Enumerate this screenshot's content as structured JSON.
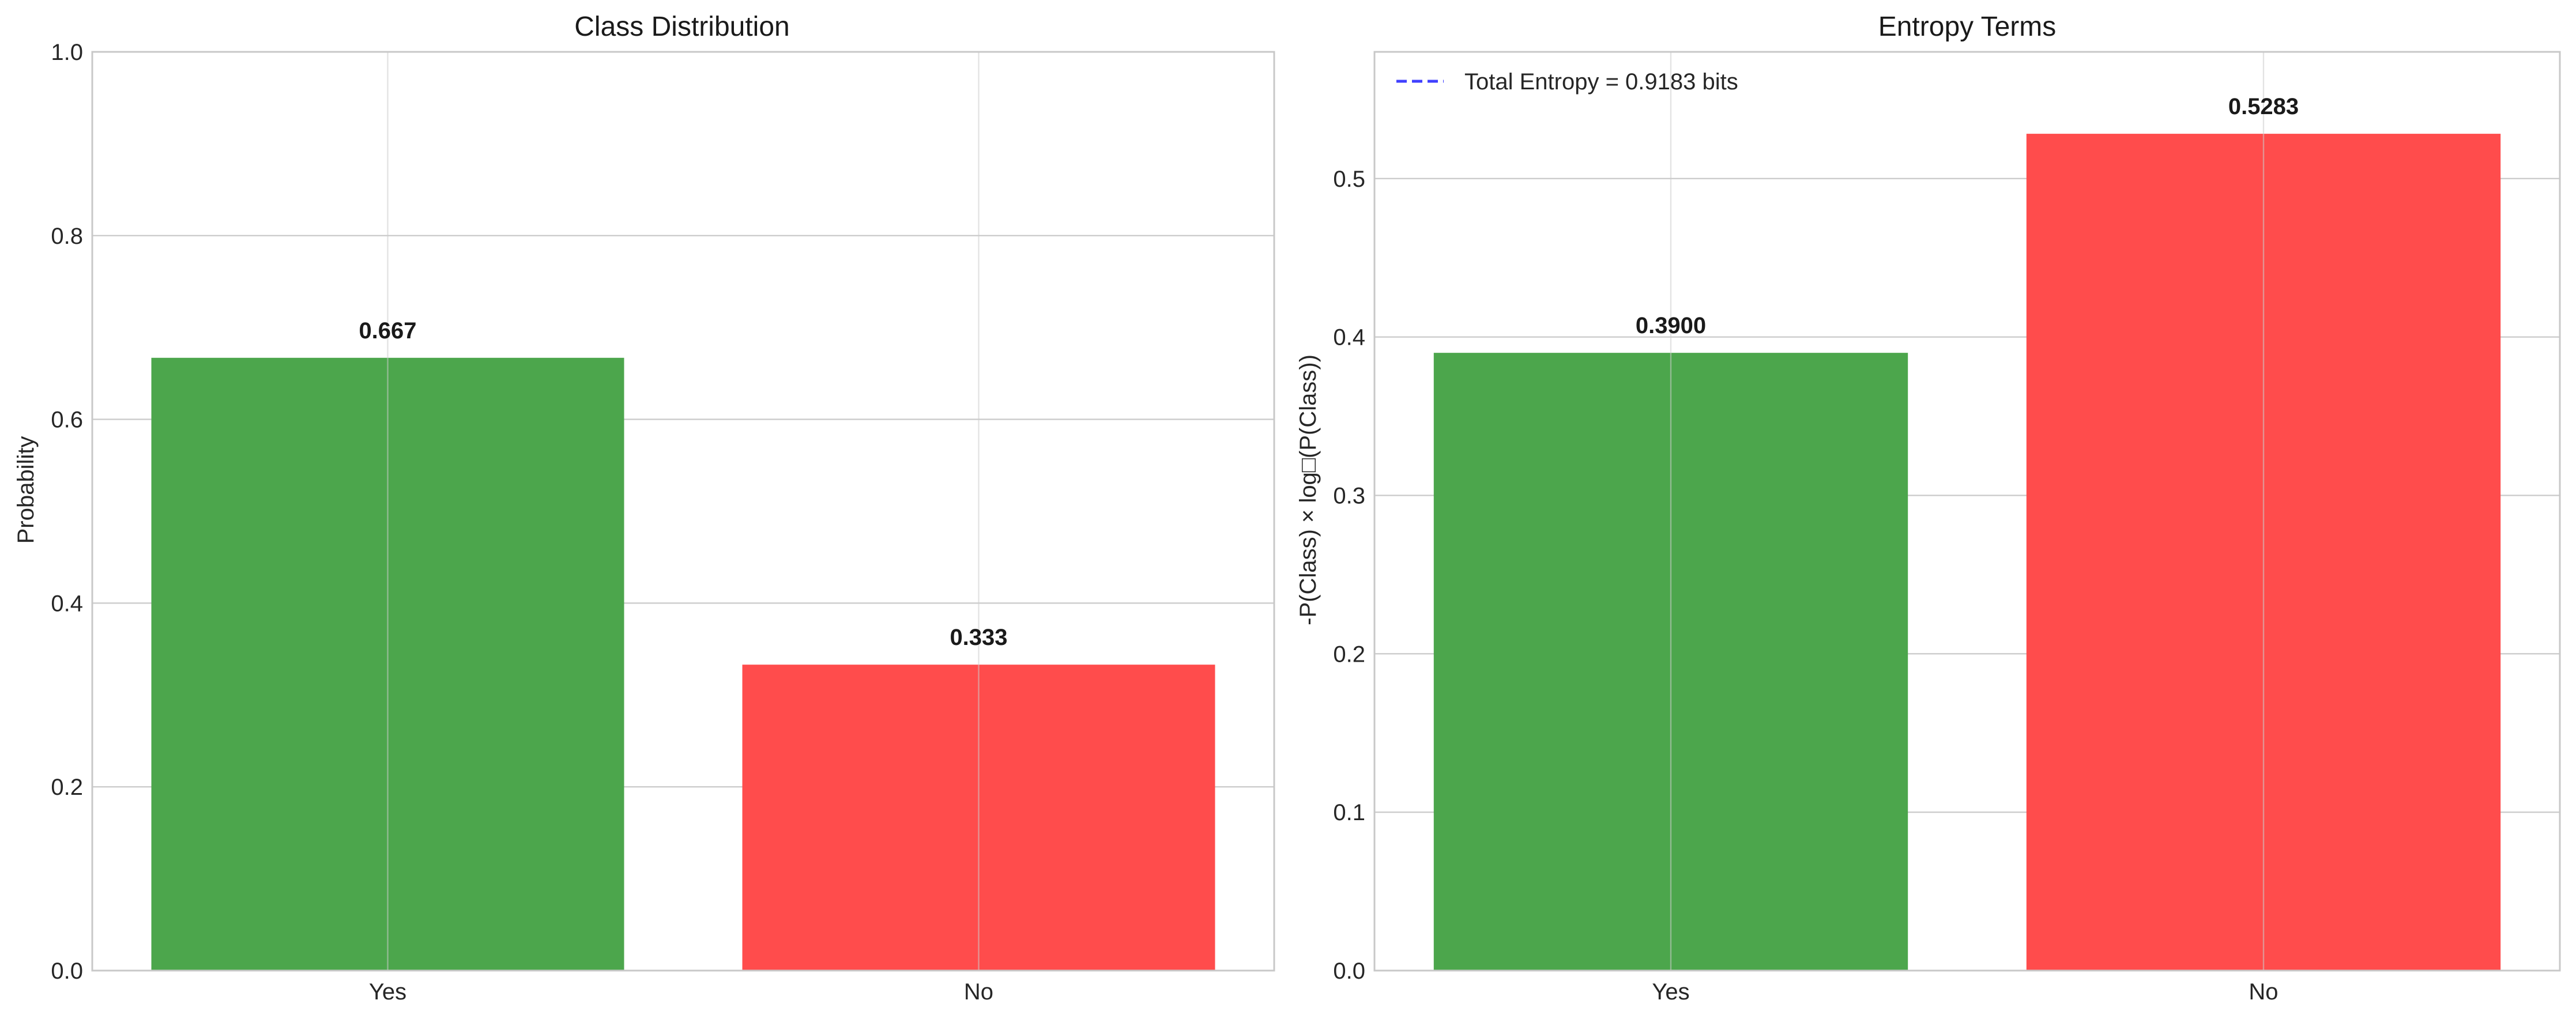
{
  "chart_data": [
    {
      "type": "bar",
      "title": "Class Distribution",
      "xlabel": "",
      "ylabel": "Probability",
      "categories": [
        "Yes",
        "No"
      ],
      "values": [
        0.667,
        0.333
      ],
      "value_labels": [
        "0.667",
        "0.333"
      ],
      "colors": [
        "#4ca64c",
        "#ff4c4c"
      ],
      "ylim": [
        0,
        1.0
      ],
      "yticks": [
        0.0,
        0.2,
        0.4,
        0.6,
        0.8,
        1.0
      ],
      "ytick_labels": [
        "0.0",
        "0.2",
        "0.4",
        "0.6",
        "0.8",
        "1.0"
      ],
      "grid": true
    },
    {
      "type": "bar",
      "title": "Entropy Terms",
      "xlabel": "",
      "ylabel": "-P(Class) × log□(P(Class))",
      "categories": [
        "Yes",
        "No"
      ],
      "values": [
        0.39,
        0.5283
      ],
      "value_labels": [
        "0.3900",
        "0.5283"
      ],
      "colors": [
        "#4ca64c",
        "#ff4c4c"
      ],
      "ylim": [
        0,
        0.58
      ],
      "yticks": [
        0.0,
        0.1,
        0.2,
        0.3,
        0.4,
        0.5
      ],
      "ytick_labels": [
        "0.0",
        "0.1",
        "0.2",
        "0.3",
        "0.4",
        "0.5"
      ],
      "grid": true,
      "legend": {
        "placement": "upper-left",
        "entries": [
          {
            "label": "Total Entropy = 0.9183 bits",
            "style": "dashed",
            "color": "#4040ff"
          }
        ]
      }
    }
  ]
}
